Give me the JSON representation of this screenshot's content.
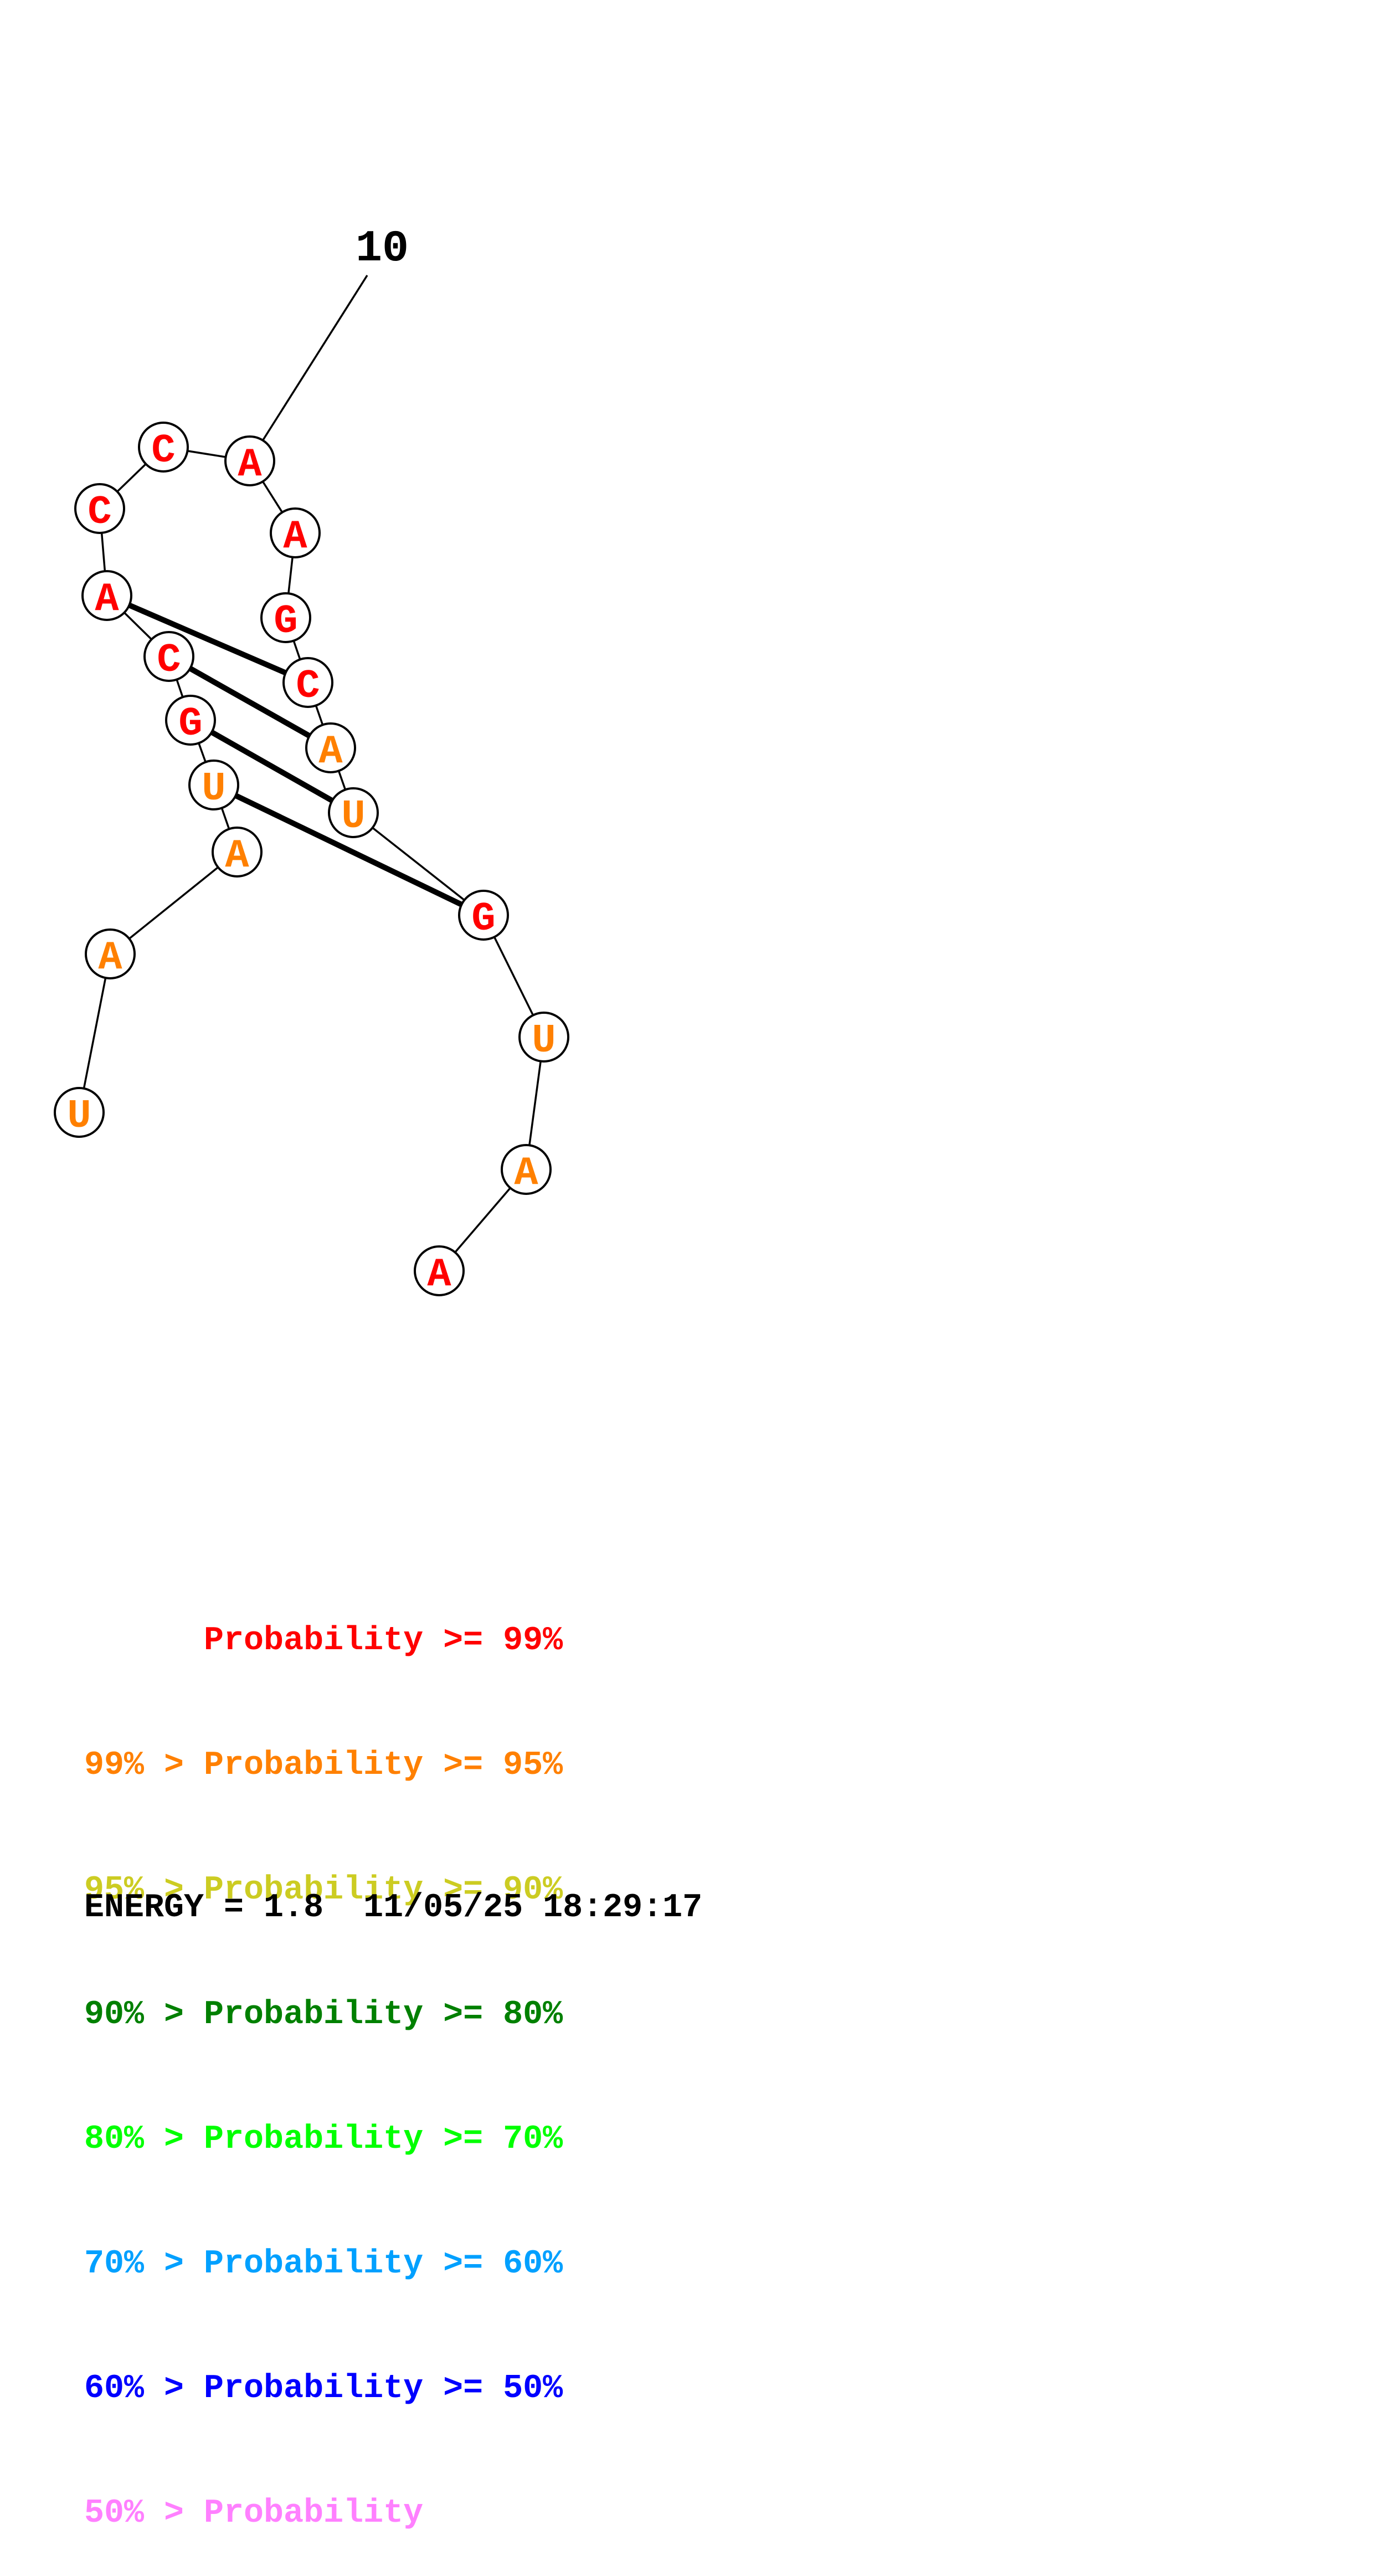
{
  "colors": {
    "p99": "#ff0000",
    "p95": "#ff8000",
    "p90": "#cccc22",
    "p80": "#008000",
    "p70": "#00ff00",
    "p60": "#00a0ff",
    "p50": "#0000ff",
    "plt50": "#ff80ff"
  },
  "structure": {
    "nucleotides": [
      {
        "base": "U",
        "color": "#ff8000"
      },
      {
        "base": "A",
        "color": "#ff8000"
      },
      {
        "base": "A",
        "color": "#ff8000"
      },
      {
        "base": "U",
        "color": "#ff8000"
      },
      {
        "base": "G",
        "color": "#ff0000"
      },
      {
        "base": "C",
        "color": "#ff0000"
      },
      {
        "base": "A",
        "color": "#ff0000"
      },
      {
        "base": "C",
        "color": "#ff0000"
      },
      {
        "base": "C",
        "color": "#ff0000"
      },
      {
        "base": "A",
        "color": "#ff0000"
      },
      {
        "base": "A",
        "color": "#ff0000"
      },
      {
        "base": "G",
        "color": "#ff0000"
      },
      {
        "base": "C",
        "color": "#ff0000"
      },
      {
        "base": "A",
        "color": "#ff8000"
      },
      {
        "base": "U",
        "color": "#ff8000"
      },
      {
        "base": "G",
        "color": "#ff0000"
      },
      {
        "base": "U",
        "color": "#ff8000"
      },
      {
        "base": "A",
        "color": "#ff8000"
      },
      {
        "base": "A",
        "color": "#ff0000"
      }
    ],
    "pairs": [
      [
        3,
        15
      ],
      [
        4,
        14
      ],
      [
        5,
        13
      ],
      [
        6,
        12
      ]
    ],
    "tick": {
      "index": 10,
      "label": "10"
    }
  },
  "legend": [
    {
      "text": "      Probability >= 99%",
      "color": "#ff0000"
    },
    {
      "text": "99% > Probability >= 95%",
      "color": "#ff8000"
    },
    {
      "text": "95% > Probability >= 90%",
      "color": "#cccc22"
    },
    {
      "text": "90% > Probability >= 80%",
      "color": "#008000"
    },
    {
      "text": "80% > Probability >= 70%",
      "color": "#00ff00"
    },
    {
      "text": "70% > Probability >= 60%",
      "color": "#00a0ff"
    },
    {
      "text": "60% > Probability >= 50%",
      "color": "#0000ff"
    },
    {
      "text": "50% > Probability",
      "color": "#ff80ff"
    }
  ],
  "footer": {
    "energy_label": "ENERGY = 1.8  11/05/25 18:29:17"
  }
}
